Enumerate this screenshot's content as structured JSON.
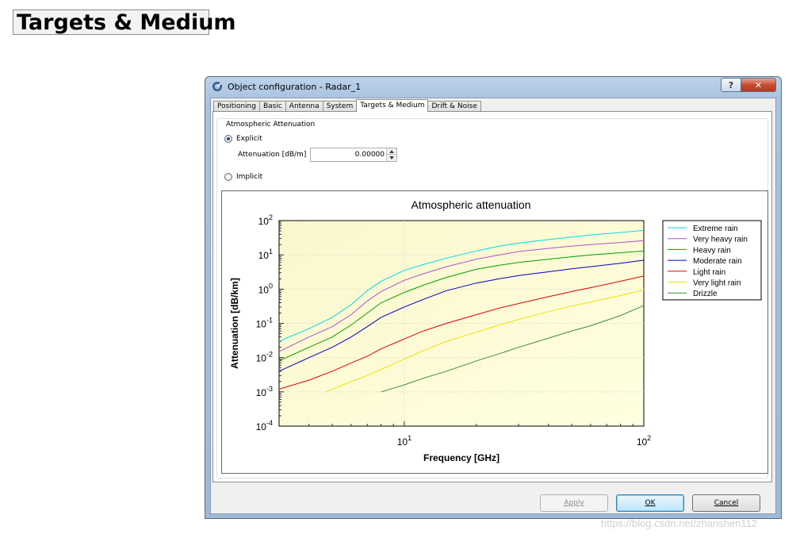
{
  "page": {
    "heading": "Targets & Medium"
  },
  "window": {
    "title": "Object configuration - Radar_1",
    "help_glyph": "?",
    "close_glyph": "✕",
    "icon": "radar-app-icon"
  },
  "tabs": [
    {
      "label": "Positioning",
      "active": false
    },
    {
      "label": "Basic",
      "active": false
    },
    {
      "label": "Antenna",
      "active": false
    },
    {
      "label": "System",
      "active": false
    },
    {
      "label": "Targets & Medium",
      "active": true
    },
    {
      "label": "Drift & Noise",
      "active": false
    }
  ],
  "attenuation_group": {
    "legend": "Atmospheric Attenuation",
    "explicit_label": "Explicit",
    "explicit_selected": true,
    "attenuation_label": "Attenuation [dB/m]",
    "attenuation_value": "0.00000",
    "implicit_label": "Implicit",
    "implicit_selected": false
  },
  "buttons": {
    "apply": "Apply",
    "ok": "OK",
    "cancel": "Cancel"
  },
  "watermark": "https://blog.csdn.net/zhanshen112",
  "chart_data": {
    "type": "line",
    "title": "Atmospheric attenuation",
    "xlabel": "Frequency [GHz]",
    "ylabel": "Attenuation [dB/km]",
    "x_scale": "log",
    "y_scale": "log",
    "xlim": [
      3,
      100
    ],
    "ylim": [
      0.0001,
      100
    ],
    "x_ticks": [
      {
        "base": "10",
        "exp": "1",
        "value": 10
      },
      {
        "base": "10",
        "exp": "2",
        "value": 100
      }
    ],
    "y_ticks": [
      {
        "base": "10",
        "exp": "2",
        "value": 100
      },
      {
        "base": "10",
        "exp": "1",
        "value": 10
      },
      {
        "base": "10",
        "exp": "0",
        "value": 1
      },
      {
        "base": "10",
        "exp": "-1",
        "value": 0.1
      },
      {
        "base": "10",
        "exp": "-2",
        "value": 0.01
      },
      {
        "base": "10",
        "exp": "-3",
        "value": 0.001
      },
      {
        "base": "10",
        "exp": "-4",
        "value": 0.0001
      }
    ],
    "grid": true,
    "legend_position": "right",
    "background": "#ffffe0",
    "series": [
      {
        "name": "Extreme rain",
        "color": "#00d8e8",
        "x": [
          3,
          4,
          5,
          6,
          7,
          8,
          10,
          12,
          15,
          20,
          25,
          30,
          40,
          50,
          60,
          80,
          100
        ],
        "y": [
          0.03,
          0.07,
          0.15,
          0.35,
          0.9,
          1.7,
          3.5,
          5.2,
          8,
          13,
          18,
          22,
          28,
          33,
          38,
          45,
          52
        ]
      },
      {
        "name": "Very heavy rain",
        "color": "#b050d0",
        "x": [
          3,
          4,
          5,
          6,
          7,
          8,
          10,
          12,
          15,
          20,
          25,
          30,
          40,
          50,
          60,
          80,
          100
        ],
        "y": [
          0.015,
          0.04,
          0.08,
          0.18,
          0.45,
          0.85,
          1.8,
          2.8,
          4.5,
          7.5,
          10,
          12.5,
          15.5,
          18,
          20,
          23,
          26
        ]
      },
      {
        "name": "Heavy rain",
        "color": "#00a000",
        "x": [
          3,
          4,
          5,
          6,
          7,
          8,
          10,
          12,
          15,
          20,
          25,
          30,
          40,
          50,
          60,
          80,
          100
        ],
        "y": [
          0.008,
          0.02,
          0.04,
          0.09,
          0.2,
          0.4,
          0.8,
          1.3,
          2.2,
          3.8,
          5,
          6,
          7.5,
          8.8,
          10,
          11.5,
          13
        ]
      },
      {
        "name": "Moderate rain",
        "color": "#0000c0",
        "x": [
          3,
          4,
          5,
          6,
          7,
          8,
          10,
          12,
          15,
          20,
          25,
          30,
          40,
          50,
          60,
          80,
          100
        ],
        "y": [
          0.004,
          0.01,
          0.02,
          0.04,
          0.08,
          0.15,
          0.3,
          0.5,
          0.9,
          1.5,
          2.0,
          2.5,
          3.2,
          3.9,
          4.5,
          5.7,
          7
        ]
      },
      {
        "name": "Light rain",
        "color": "#e00000",
        "x": [
          3,
          4,
          5,
          6,
          7,
          8,
          10,
          12,
          15,
          20,
          25,
          30,
          40,
          50,
          60,
          80,
          100
        ],
        "y": [
          0.0012,
          0.0022,
          0.004,
          0.007,
          0.011,
          0.018,
          0.035,
          0.06,
          0.1,
          0.18,
          0.28,
          0.38,
          0.6,
          0.85,
          1.1,
          1.7,
          2.4
        ]
      },
      {
        "name": "Very light rain",
        "color": "#f0e000",
        "x": [
          4.7,
          6,
          7,
          8,
          10,
          12,
          15,
          20,
          25,
          30,
          40,
          50,
          60,
          80,
          100
        ],
        "y": [
          0.001,
          0.002,
          0.003,
          0.0045,
          0.009,
          0.016,
          0.03,
          0.055,
          0.09,
          0.13,
          0.22,
          0.32,
          0.42,
          0.65,
          0.95
        ]
      },
      {
        "name": "Drizzle",
        "color": "#3c8c3c",
        "x": [
          8,
          10,
          12,
          15,
          20,
          25,
          30,
          40,
          50,
          60,
          80,
          100
        ],
        "y": [
          0.001,
          0.0016,
          0.0025,
          0.004,
          0.008,
          0.013,
          0.02,
          0.037,
          0.06,
          0.085,
          0.17,
          0.33
        ]
      }
    ]
  }
}
